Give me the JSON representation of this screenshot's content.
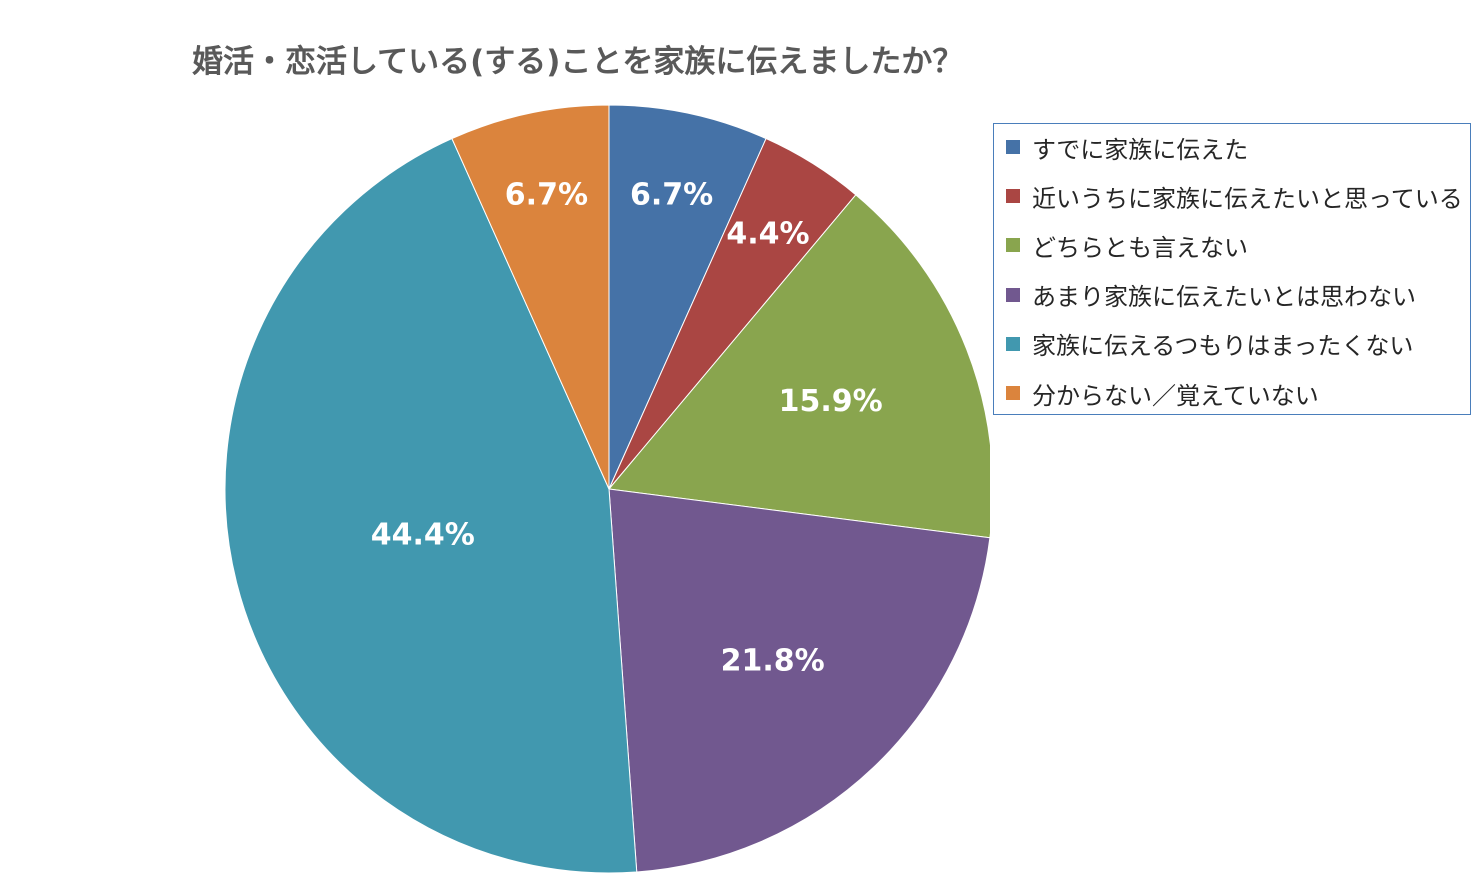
{
  "chart_data": {
    "type": "pie",
    "title": "婚活・恋活している(する)ことを家族に伝えましたか？",
    "start_angle_deg": 0,
    "direction": "clockwise",
    "legend_position": "right",
    "slices": [
      {
        "label": "すでに家族に伝えた",
        "value": 6.7,
        "display": "6.7%",
        "color": "#4572a7"
      },
      {
        "label": "近いうちに家族に伝えたいと思っている",
        "value": 4.4,
        "display": "4.4%",
        "color": "#aa4643"
      },
      {
        "label": "どちらとも言えない",
        "value": 15.9,
        "display": "15.9%",
        "color": "#89a54e"
      },
      {
        "label": "あまり家族に伝えたいとは思わない",
        "value": 21.8,
        "display": "21.8%",
        "color": "#71588f"
      },
      {
        "label": "家族に伝えるつもりはまったくない",
        "value": 44.4,
        "display": "44.4%",
        "color": "#4198af"
      },
      {
        "label": "分からない／覚えていない",
        "value": 6.7,
        "display": "6.7%",
        "color": "#db843d"
      }
    ]
  }
}
